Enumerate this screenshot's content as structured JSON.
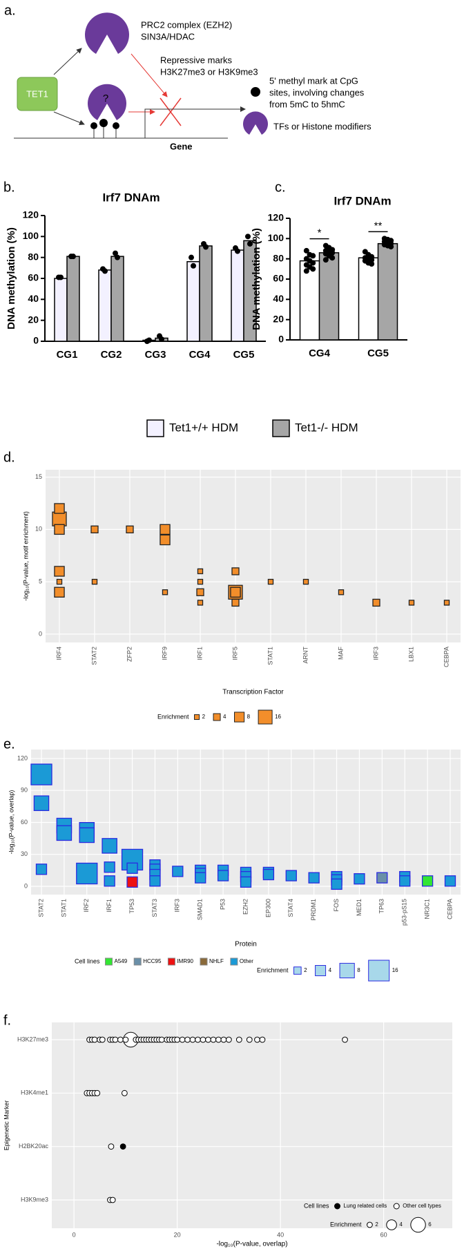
{
  "diagram": {
    "panel_label": "a.",
    "complex_lines": [
      "PRC2 complex (EZH2)",
      "SIN3A/HDAC"
    ],
    "repressive_lines": [
      "Repressive marks",
      "H3K27me3 or H3K9me3"
    ],
    "tet1": "TET1",
    "question": "?",
    "methyl_lines": [
      "5' methyl mark at CpG",
      "sites, involving changes",
      "from 5mC to 5hmC"
    ],
    "tf_legend": "TFs or Histone modifiers",
    "gene": "Gene"
  },
  "chart_data": [
    {
      "type": "bar",
      "panel_label": "b.",
      "title": "Irf7 DNAm",
      "y_label": "DNA methylation (%)",
      "categories": [
        "CG1",
        "CG2",
        "CG3",
        "CG4",
        "CG5"
      ],
      "series": [
        {
          "name": "Tet1+/+ HDM",
          "color": "#f3f1ff",
          "values": [
            60,
            68,
            1,
            76,
            87
          ],
          "points": [
            [
              61,
              61
            ],
            [
              69,
              67
            ],
            [
              0,
              1
            ],
            [
              80,
              72
            ],
            [
              89,
              86
            ]
          ]
        },
        {
          "name": "Tet1-/- HDM",
          "color": "#a6a6a6",
          "values": [
            81,
            81,
            3,
            91,
            96
          ],
          "points": [
            [
              81,
              81
            ],
            [
              84,
              80
            ],
            [
              5,
              2
            ],
            [
              93,
              90
            ],
            [
              100,
              93
            ]
          ]
        }
      ],
      "ylim": [
        0,
        120
      ],
      "yticks": [
        0,
        20,
        40,
        60,
        80,
        100,
        120
      ]
    },
    {
      "type": "bar",
      "panel_label": "c.",
      "title": "Irf7 DNAm",
      "y_label": "DNA methylation (%)",
      "categories": [
        "CG4",
        "CG5"
      ],
      "series": [
        {
          "color": "#ffffff",
          "values": [
            78,
            81
          ],
          "points": [
            [
              88,
              84,
              83,
              80,
              78,
              76,
              74,
              72,
              70,
              68
            ],
            [
              87,
              84,
              82,
              81,
              80,
              79,
              78,
              76,
              75
            ]
          ]
        },
        {
          "color": "#a6a6a6",
          "values": [
            86,
            95
          ],
          "points": [
            [
              93,
              91,
              89,
              88,
              87,
              86,
              85,
              83,
              81,
              79
            ],
            [
              100,
              99,
              98,
              97,
              96,
              95,
              94,
              93,
              92
            ]
          ]
        }
      ],
      "significance": [
        "*",
        "**"
      ],
      "ylim": [
        0,
        120
      ],
      "yticks": [
        0,
        20,
        40,
        60,
        80,
        100,
        120
      ]
    },
    {
      "type": "bubble",
      "panel_label": "d.",
      "y_label": "-log₁₀(P-value, motif enrichment)",
      "x_label": "Transcription Factor",
      "categories": [
        "IRF4",
        "STAT2",
        "ZFP2",
        "IRF9",
        "IRF1",
        "IRF5",
        "STAT1",
        "ARNT",
        "MAF",
        "IRF3",
        "LBX1",
        "CEBPA"
      ],
      "color": "#f28e2b",
      "stroke": "#222222",
      "points": [
        {
          "x": "IRF4",
          "y": 11,
          "size": 16
        },
        {
          "x": "IRF4",
          "y": 12,
          "size": 8
        },
        {
          "x": "IRF4",
          "y": 10,
          "size": 8
        },
        {
          "x": "IRF4",
          "y": 6,
          "size": 8
        },
        {
          "x": "IRF4",
          "y": 5,
          "size": 2
        },
        {
          "x": "IRF4",
          "y": 4,
          "size": 8
        },
        {
          "x": "STAT2",
          "y": 10,
          "size": 4
        },
        {
          "x": "STAT2",
          "y": 5,
          "size": 2
        },
        {
          "x": "ZFP2",
          "y": 10,
          "size": 4
        },
        {
          "x": "IRF9",
          "y": 10,
          "size": 8
        },
        {
          "x": "IRF9",
          "y": 9,
          "size": 8
        },
        {
          "x": "IRF9",
          "y": 4,
          "size": 2
        },
        {
          "x": "IRF1",
          "y": 6,
          "size": 2
        },
        {
          "x": "IRF1",
          "y": 5,
          "size": 2
        },
        {
          "x": "IRF1",
          "y": 4,
          "size": 4
        },
        {
          "x": "IRF1",
          "y": 3,
          "size": 2
        },
        {
          "x": "IRF5",
          "y": 4,
          "size": 16
        },
        {
          "x": "IRF5",
          "y": 4,
          "size": 8
        },
        {
          "x": "IRF5",
          "y": 6,
          "size": 4
        },
        {
          "x": "IRF5",
          "y": 3,
          "size": 4
        },
        {
          "x": "STAT1",
          "y": 5,
          "size": 2
        },
        {
          "x": "ARNT",
          "y": 5,
          "size": 2
        },
        {
          "x": "MAF",
          "y": 4,
          "size": 2
        },
        {
          "x": "IRF3",
          "y": 3,
          "size": 4
        },
        {
          "x": "LBX1",
          "y": 3,
          "size": 2
        },
        {
          "x": "CEBPA",
          "y": 3,
          "size": 2
        }
      ],
      "size_legend": {
        "title": "Enrichment",
        "values": [
          2,
          4,
          8,
          16
        ]
      },
      "ylim": [
        -0.8,
        15.7
      ],
      "yticks": [
        0,
        5,
        10,
        15
      ],
      "grid": true
    },
    {
      "type": "bubble",
      "panel_label": "e.",
      "y_label": "-log₁₀(P-value, overlap)",
      "x_label": "Protein",
      "categories": [
        "STAT2",
        "STAT1",
        "IRF2",
        "IRF1",
        "TP53",
        "STAT3",
        "IRF3",
        "SMAD1",
        "P53",
        "EZH2",
        "EP300",
        "STAT4",
        "PRDM1",
        "FOS",
        "MED1",
        "TP63",
        "p53-pS15",
        "NR3C1",
        "CEBPA"
      ],
      "stroke": "#2a2ae0",
      "points": [
        {
          "x": "STAT2",
          "y": 105,
          "size": 16,
          "cell_line": "Other"
        },
        {
          "x": "STAT2",
          "y": 78,
          "size": 8,
          "cell_line": "Other"
        },
        {
          "x": "STAT2",
          "y": 16,
          "size": 4,
          "cell_line": "Other"
        },
        {
          "x": "STAT1",
          "y": 57,
          "size": 8,
          "cell_line": "Other"
        },
        {
          "x": "STAT1",
          "y": 50,
          "size": 8,
          "cell_line": "Other"
        },
        {
          "x": "IRF2",
          "y": 12,
          "size": 16,
          "cell_line": "Other"
        },
        {
          "x": "IRF2",
          "y": 53,
          "size": 8,
          "cell_line": "Other"
        },
        {
          "x": "IRF2",
          "y": 48,
          "size": 8,
          "cell_line": "Other"
        },
        {
          "x": "IRF1",
          "y": 38,
          "size": 8,
          "cell_line": "Other"
        },
        {
          "x": "IRF1",
          "y": 18,
          "size": 4,
          "cell_line": "Other"
        },
        {
          "x": "IRF1",
          "y": 5,
          "size": 4,
          "cell_line": "Other"
        },
        {
          "x": "TP53",
          "y": 25,
          "size": 16,
          "cell_line": "Other"
        },
        {
          "x": "TP53",
          "y": 17,
          "size": 4,
          "cell_line": "Other"
        },
        {
          "x": "TP53",
          "y": 4,
          "size": 4,
          "cell_line": "IMR90"
        },
        {
          "x": "STAT3",
          "y": 20,
          "size": 4,
          "cell_line": "Other"
        },
        {
          "x": "STAT3",
          "y": 16,
          "size": 4,
          "cell_line": "Other"
        },
        {
          "x": "STAT3",
          "y": 11,
          "size": 4,
          "cell_line": "Other"
        },
        {
          "x": "STAT3",
          "y": 5,
          "size": 4,
          "cell_line": "Other"
        },
        {
          "x": "IRF3",
          "y": 14,
          "size": 4,
          "cell_line": "Other"
        },
        {
          "x": "SMAD1",
          "y": 15,
          "size": 4,
          "cell_line": "Other"
        },
        {
          "x": "SMAD1",
          "y": 12,
          "size": 4,
          "cell_line": "Other"
        },
        {
          "x": "SMAD1",
          "y": 8,
          "size": 4,
          "cell_line": "Other"
        },
        {
          "x": "P53",
          "y": 15,
          "size": 4,
          "cell_line": "Other"
        },
        {
          "x": "P53",
          "y": 10,
          "size": 4,
          "cell_line": "Other"
        },
        {
          "x": "EZH2",
          "y": 13,
          "size": 4,
          "cell_line": "Other"
        },
        {
          "x": "EZH2",
          "y": 9,
          "size": 4,
          "cell_line": "Other"
        },
        {
          "x": "EZH2",
          "y": 4,
          "size": 4,
          "cell_line": "Other"
        },
        {
          "x": "EP300",
          "y": 13,
          "size": 4,
          "cell_line": "Other"
        },
        {
          "x": "EP300",
          "y": 11,
          "size": 4,
          "cell_line": "Other"
        },
        {
          "x": "STAT4",
          "y": 10,
          "size": 4,
          "cell_line": "Other"
        },
        {
          "x": "PRDM1",
          "y": 8,
          "size": 4,
          "cell_line": "Other"
        },
        {
          "x": "FOS",
          "y": 9,
          "size": 4,
          "cell_line": "Other"
        },
        {
          "x": "FOS",
          "y": 6,
          "size": 4,
          "cell_line": "Other"
        },
        {
          "x": "FOS",
          "y": 2,
          "size": 4,
          "cell_line": "Other"
        },
        {
          "x": "MED1",
          "y": 7,
          "size": 4,
          "cell_line": "Other"
        },
        {
          "x": "TP63",
          "y": 8,
          "size": 4,
          "cell_line": "HCC95"
        },
        {
          "x": "p53-pS15",
          "y": 9,
          "size": 4,
          "cell_line": "Other"
        },
        {
          "x": "p53-pS15",
          "y": 5,
          "size": 4,
          "cell_line": "Other"
        },
        {
          "x": "NR3C1",
          "y": 5,
          "size": 4,
          "cell_line": "A549"
        },
        {
          "x": "CEBPA",
          "y": 5,
          "size": 4,
          "cell_line": "Other"
        }
      ],
      "cell_lines": {
        "title": "Cell lines",
        "items": [
          {
            "name": "A549",
            "color": "#33e633"
          },
          {
            "name": "HCC95",
            "color": "#6a8fa8"
          },
          {
            "name": "IMR90",
            "color": "#ee1111"
          },
          {
            "name": "NHLF",
            "color": "#8a6a3a"
          },
          {
            "name": "Other",
            "color": "#1b9ad6"
          }
        ]
      },
      "size_legend": {
        "title": "Enrichment",
        "values": [
          2,
          4,
          8,
          16
        ]
      },
      "ylim": [
        -7.8,
        128.4
      ],
      "yticks": [
        0,
        30,
        60,
        90,
        120
      ],
      "grid": true
    },
    {
      "type": "scatter",
      "panel_label": "f.",
      "y_label": "Epigenetic Marker",
      "x_label": "-log₁₀(P-value, overlap)",
      "categories": [
        "H3K27me3",
        "H3K4me1",
        "H2BK20ac",
        "H3K9me3"
      ],
      "points": [
        {
          "y": "H3K27me3",
          "x": 11,
          "size": 6,
          "cell_line": "Other cell types"
        },
        {
          "y": "H3K27me3",
          "x": 3,
          "size": 2,
          "cell_line": "Other cell types"
        },
        {
          "y": "H3K27me3",
          "x": 3.5,
          "size": 2,
          "cell_line": "Other cell types"
        },
        {
          "y": "H3K27me3",
          "x": 4,
          "size": 2,
          "cell_line": "Other cell types"
        },
        {
          "y": "H3K27me3",
          "x": 5,
          "size": 2,
          "cell_line": "Other cell types"
        },
        {
          "y": "H3K27me3",
          "x": 5.5,
          "size": 2,
          "cell_line": "Other cell types"
        },
        {
          "y": "H3K27me3",
          "x": 7,
          "size": 2,
          "cell_line": "Other cell types"
        },
        {
          "y": "H3K27me3",
          "x": 7.5,
          "size": 2,
          "cell_line": "Other cell types"
        },
        {
          "y": "H3K27me3",
          "x": 8,
          "size": 2,
          "cell_line": "Other cell types"
        },
        {
          "y": "H3K27me3",
          "x": 9,
          "size": 2,
          "cell_line": "Other cell types"
        },
        {
          "y": "H3K27me3",
          "x": 10,
          "size": 2,
          "cell_line": "Other cell types"
        },
        {
          "y": "H3K27me3",
          "x": 12,
          "size": 2,
          "cell_line": "Other cell types"
        },
        {
          "y": "H3K27me3",
          "x": 12.5,
          "size": 2,
          "cell_line": "Other cell types"
        },
        {
          "y": "H3K27me3",
          "x": 13,
          "size": 2,
          "cell_line": "Other cell types"
        },
        {
          "y": "H3K27me3",
          "x": 13.5,
          "size": 2,
          "cell_line": "Other cell types"
        },
        {
          "y": "H3K27me3",
          "x": 14,
          "size": 2,
          "cell_line": "Other cell types"
        },
        {
          "y": "H3K27me3",
          "x": 14.5,
          "size": 2,
          "cell_line": "Other cell types"
        },
        {
          "y": "H3K27me3",
          "x": 15,
          "size": 2,
          "cell_line": "Other cell types"
        },
        {
          "y": "H3K27me3",
          "x": 15.5,
          "size": 2,
          "cell_line": "Other cell types"
        },
        {
          "y": "H3K27me3",
          "x": 16,
          "size": 2,
          "cell_line": "Other cell types"
        },
        {
          "y": "H3K27me3",
          "x": 16.5,
          "size": 2,
          "cell_line": "Other cell types"
        },
        {
          "y": "H3K27me3",
          "x": 17,
          "size": 2,
          "cell_line": "Other cell types"
        },
        {
          "y": "H3K27me3",
          "x": 18,
          "size": 2,
          "cell_line": "Other cell types"
        },
        {
          "y": "H3K27me3",
          "x": 18.5,
          "size": 2,
          "cell_line": "Other cell types"
        },
        {
          "y": "H3K27me3",
          "x": 19,
          "size": 2,
          "cell_line": "Other cell types"
        },
        {
          "y": "H3K27me3",
          "x": 19.5,
          "size": 2,
          "cell_line": "Other cell types"
        },
        {
          "y": "H3K27me3",
          "x": 20,
          "size": 2,
          "cell_line": "Other cell types"
        },
        {
          "y": "H3K27me3",
          "x": 21,
          "size": 2,
          "cell_line": "Other cell types"
        },
        {
          "y": "H3K27me3",
          "x": 22,
          "size": 2,
          "cell_line": "Other cell types"
        },
        {
          "y": "H3K27me3",
          "x": 23,
          "size": 2,
          "cell_line": "Other cell types"
        },
        {
          "y": "H3K27me3",
          "x": 24,
          "size": 2,
          "cell_line": "Other cell types"
        },
        {
          "y": "H3K27me3",
          "x": 25,
          "size": 2,
          "cell_line": "Other cell types"
        },
        {
          "y": "H3K27me3",
          "x": 26,
          "size": 2,
          "cell_line": "Other cell types"
        },
        {
          "y": "H3K27me3",
          "x": 27,
          "size": 2,
          "cell_line": "Other cell types"
        },
        {
          "y": "H3K27me3",
          "x": 28,
          "size": 2,
          "cell_line": "Other cell types"
        },
        {
          "y": "H3K27me3",
          "x": 29,
          "size": 2,
          "cell_line": "Other cell types"
        },
        {
          "y": "H3K27me3",
          "x": 30,
          "size": 2,
          "cell_line": "Other cell types"
        },
        {
          "y": "H3K27me3",
          "x": 32,
          "size": 2,
          "cell_line": "Other cell types"
        },
        {
          "y": "H3K27me3",
          "x": 34,
          "size": 2,
          "cell_line": "Other cell types"
        },
        {
          "y": "H3K27me3",
          "x": 35.5,
          "size": 2,
          "cell_line": "Other cell types"
        },
        {
          "y": "H3K27me3",
          "x": 36.5,
          "size": 2,
          "cell_line": "Other cell types"
        },
        {
          "y": "H3K27me3",
          "x": 52.5,
          "size": 2,
          "cell_line": "Other cell types"
        },
        {
          "y": "H3K4me1",
          "x": 2.5,
          "size": 2,
          "cell_line": "Other cell types"
        },
        {
          "y": "H3K4me1",
          "x": 3,
          "size": 2,
          "cell_line": "Other cell types"
        },
        {
          "y": "H3K4me1",
          "x": 3.5,
          "size": 2,
          "cell_line": "Other cell types"
        },
        {
          "y": "H3K4me1",
          "x": 4,
          "size": 2,
          "cell_line": "Other cell types"
        },
        {
          "y": "H3K4me1",
          "x": 4.5,
          "size": 2,
          "cell_line": "Other cell types"
        },
        {
          "y": "H3K4me1",
          "x": 9.8,
          "size": 2,
          "cell_line": "Other cell types"
        },
        {
          "y": "H2BK20ac",
          "x": 7.2,
          "size": 2,
          "cell_line": "Other cell types"
        },
        {
          "y": "H2BK20ac",
          "x": 9.5,
          "size": 2,
          "cell_line": "Lung related cells"
        },
        {
          "y": "H3K9me3",
          "x": 7,
          "size": 2,
          "cell_line": "Other cell types"
        },
        {
          "y": "H3K9me3",
          "x": 7.5,
          "size": 2,
          "cell_line": "Other cell types"
        }
      ],
      "cell_lines": {
        "title": "Cell lines",
        "items": [
          {
            "name": "Lung related cells",
            "color": "#000000"
          },
          {
            "name": "Other cell types",
            "color": "#ffffff"
          }
        ]
      },
      "size_legend": {
        "title": "Enrichment",
        "values": [
          2,
          4,
          6
        ]
      },
      "xlim": [
        -4.3,
        73.3
      ],
      "xticks": [
        0,
        20,
        40,
        60
      ],
      "grid": true
    }
  ]
}
